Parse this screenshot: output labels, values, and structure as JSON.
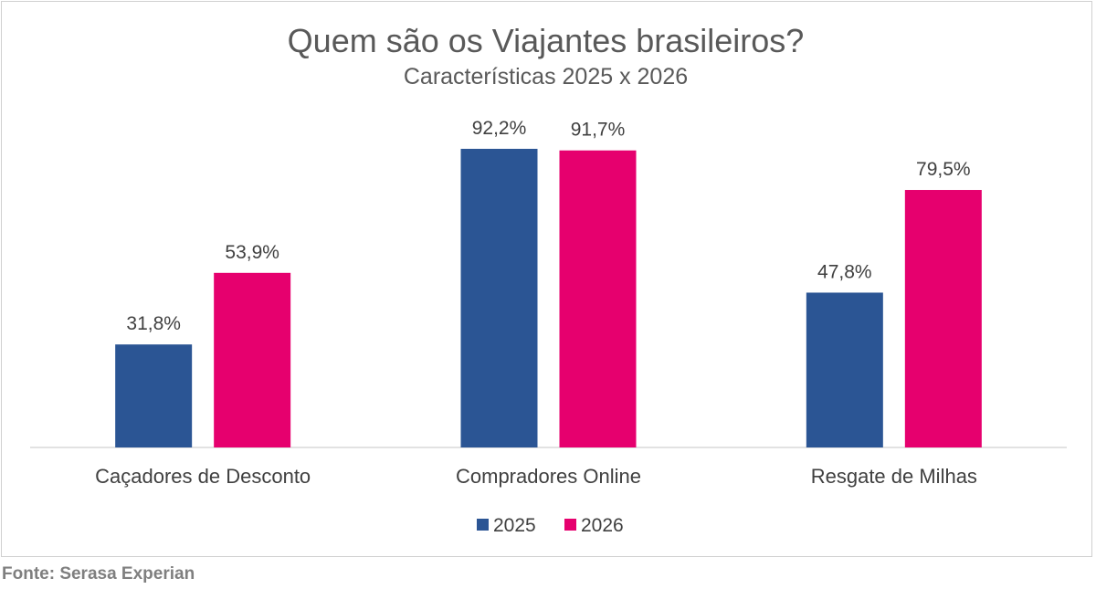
{
  "chart_data": {
    "type": "bar",
    "title": "Quem são os Viajantes brasileiros?",
    "subtitle": "Características 2025 x 2026",
    "categories": [
      "Caçadores de Desconto",
      "Compradores Online",
      "Resgate de Milhas"
    ],
    "series": [
      {
        "name": "2025",
        "values": [
          31.8,
          92.2,
          47.8
        ],
        "labels": [
          "31,8%",
          "92,2%",
          "47,8%"
        ],
        "color": "#2b5594"
      },
      {
        "name": "2026",
        "values": [
          53.9,
          91.7,
          79.5
        ],
        "labels": [
          "53,9%",
          "91,7%",
          "79,5%"
        ],
        "color": "#e6006e"
      }
    ],
    "ylim": [
      0,
      100
    ],
    "grid": false,
    "legend": "bottom"
  },
  "source": "Fonte: Serasa Experian"
}
